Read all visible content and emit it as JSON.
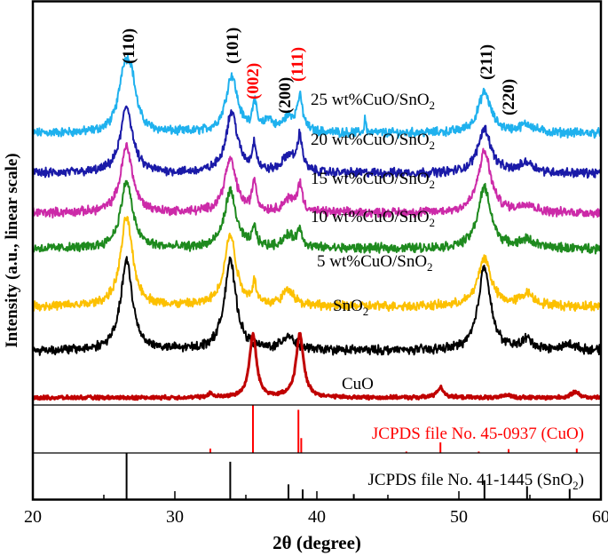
{
  "chart_data": {
    "type": "line",
    "xlabel": "2θ (degree)",
    "ylabel": "Intensity (a.u., linear scale)",
    "xlim": [
      20,
      60
    ],
    "xticks": [
      "20",
      "30",
      "40",
      "50",
      "60"
    ],
    "grid": false,
    "series": [
      {
        "name": "25 wt%CuO/SnO2",
        "label_main": "25 wt%CuO/SnO",
        "label_sub": "2",
        "color": "#1fb1ee",
        "offset": 67.1,
        "peaks": [
          [
            26.4,
            12,
            0.45
          ],
          [
            26.9,
            12,
            0.45
          ],
          [
            34.0,
            14,
            0.5
          ],
          [
            35.6,
            7,
            0.18
          ],
          [
            36.6,
            3,
            0.3
          ],
          [
            38.0,
            3.5,
            0.5
          ],
          [
            38.8,
            8,
            0.25
          ],
          [
            43.4,
            4,
            0.06
          ],
          [
            51.8,
            10,
            0.55
          ],
          [
            54.8,
            2,
            0.6
          ]
        ]
      },
      {
        "name": "20 wt%CuO/SnO2",
        "label_main": "20 wt%CuO/SnO",
        "label_sub": "2",
        "color": "#1a1aa8",
        "offset": 57.2,
        "peaks": [
          [
            26.6,
            16.5,
            0.5
          ],
          [
            34.0,
            15,
            0.5
          ],
          [
            35.6,
            6.5,
            0.18
          ],
          [
            38.0,
            4,
            0.5
          ],
          [
            38.8,
            8.5,
            0.22
          ],
          [
            51.8,
            11,
            0.55
          ],
          [
            54.8,
            2.5,
            0.6
          ]
        ]
      },
      {
        "name": "15 wt%CuO/SnO2",
        "label_main": "15 wt%CuO/SnO",
        "label_sub": "2",
        "color": "#cc2aa8",
        "offset": 47.4,
        "peaks": [
          [
            26.6,
            16.5,
            0.5
          ],
          [
            33.9,
            13,
            0.5
          ],
          [
            35.6,
            7.5,
            0.18
          ],
          [
            38.0,
            3,
            0.5
          ],
          [
            38.8,
            6.5,
            0.22
          ],
          [
            51.8,
            15,
            0.55
          ],
          [
            54.8,
            2,
            0.6
          ]
        ]
      },
      {
        "name": "10 wt%CuO/SnO2",
        "label_main": "10 wt%CuO/SnO",
        "label_sub": "2",
        "color": "#1e8a1e",
        "offset": 38.6,
        "peaks": [
          [
            26.6,
            16.5,
            0.5
          ],
          [
            33.9,
            14,
            0.5
          ],
          [
            35.6,
            4.5,
            0.18
          ],
          [
            38.0,
            3,
            0.5
          ],
          [
            38.8,
            4,
            0.22
          ],
          [
            51.8,
            15,
            0.55
          ],
          [
            54.8,
            2,
            0.6
          ]
        ]
      },
      {
        "name": "5 wt%CuO/SnO2",
        "label_main": "5 wt%CuO/SnO",
        "label_sub": "2",
        "color": "#fcc000",
        "offset": 24.3,
        "peaks": [
          [
            26.6,
            22,
            0.5
          ],
          [
            33.9,
            17.5,
            0.5
          ],
          [
            35.6,
            5,
            0.18
          ],
          [
            38.0,
            4,
            0.5
          ],
          [
            51.8,
            12,
            0.55
          ],
          [
            54.8,
            3,
            0.6
          ]
        ]
      },
      {
        "name": "SnO2",
        "label_main": "SnO",
        "label_sub": "2",
        "color": "#000000",
        "offset": 13.4,
        "peaks": [
          [
            26.6,
            22,
            0.5
          ],
          [
            33.9,
            22,
            0.5
          ],
          [
            38.0,
            3.5,
            0.5
          ],
          [
            51.8,
            21,
            0.5
          ],
          [
            54.8,
            2.5,
            0.5
          ],
          [
            57.8,
            1.5,
            0.5
          ]
        ]
      },
      {
        "name": "CuO",
        "label_main": "CuO",
        "label_sub": "",
        "color": "#c00000",
        "offset": 1.8,
        "peaks": [
          [
            32.5,
            1,
            0.2
          ],
          [
            35.5,
            15.5,
            0.3
          ],
          [
            38.8,
            15.5,
            0.32
          ],
          [
            48.7,
            2.5,
            0.3
          ],
          [
            53.5,
            0.7,
            0.3
          ],
          [
            58.2,
            1.5,
            0.3
          ]
        ]
      }
    ],
    "reflections": [
      {
        "label": "(110)",
        "x": 26.6,
        "color": "#000000"
      },
      {
        "label": "(101)",
        "x": 33.9,
        "color": "#000000"
      },
      {
        "label": "(002)",
        "x": 35.6,
        "color": "#ff0000"
      },
      {
        "label": "(200)",
        "x": 37.8,
        "color": "#000000"
      },
      {
        "label": "(111)",
        "x": 38.8,
        "color": "#ff0000"
      },
      {
        "label": "(211)",
        "x": 51.8,
        "color": "#000000"
      },
      {
        "label": "(220)",
        "x": 53.2,
        "color": "#000000"
      }
    ],
    "references": [
      {
        "name": "JCPDS file No. 45-0937 (CuO)",
        "label_main": "JCPDS file No. 45-0937 (CuO)",
        "label_sub": "",
        "label_end": "",
        "color": "#ff0000",
        "sticks": [
          [
            32.5,
            9
          ],
          [
            35.5,
            100
          ],
          [
            38.7,
            90
          ],
          [
            38.9,
            31
          ],
          [
            46.3,
            3
          ],
          [
            48.7,
            22
          ],
          [
            51.4,
            3
          ],
          [
            53.5,
            8
          ],
          [
            58.3,
            9
          ]
        ]
      },
      {
        "name": "JCPDS file No. 41-1445 (SnO2)",
        "label_main": "JCPDS file No. 41-1445 (SnO",
        "label_sub": "2",
        "label_end": ")",
        "color": "#000000",
        "sticks": [
          [
            26.6,
            100
          ],
          [
            33.9,
            81
          ],
          [
            38.0,
            32
          ],
          [
            39.0,
            21
          ],
          [
            42.6,
            11
          ],
          [
            51.8,
            41
          ],
          [
            54.8,
            28
          ],
          [
            57.8,
            22
          ]
        ]
      }
    ]
  }
}
